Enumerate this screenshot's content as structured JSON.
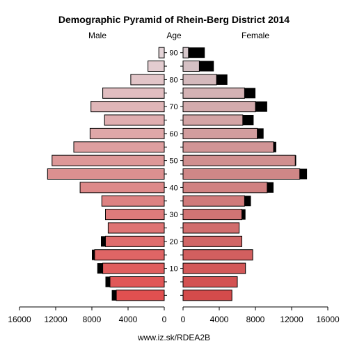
{
  "chart_data": {
    "type": "bar",
    "title": "Demographic Pyramid of Rhein-Berg District 2014",
    "left_label": "Male",
    "center_label": "Age",
    "right_label": "Female",
    "footer": "www.iz.sk/RDEA2B",
    "xlim": [
      0,
      16000
    ],
    "x_ticks": [
      "16000",
      "12000",
      "8000",
      "4000",
      "0"
    ],
    "x_ticks_right": [
      "0",
      "4000",
      "8000",
      "12000",
      "16000"
    ],
    "age_ticks": [
      "10",
      "20",
      "30",
      "40",
      "50",
      "60",
      "70",
      "80",
      "90"
    ],
    "age_groups": [
      "0-4",
      "5-9",
      "10-14",
      "15-19",
      "20-24",
      "25-29",
      "30-34",
      "35-39",
      "40-44",
      "45-49",
      "50-54",
      "55-59",
      "60-64",
      "65-69",
      "70-74",
      "75-79",
      "80-84",
      "85-89",
      "90+"
    ],
    "male": [
      5300,
      6000,
      6800,
      7700,
      6500,
      6200,
      6500,
      6900,
      9300,
      12900,
      12400,
      10000,
      8200,
      6600,
      8100,
      6800,
      3700,
      1800,
      600
    ],
    "male_surplus": [
      500,
      500,
      600,
      300,
      500,
      0,
      0,
      0,
      0,
      0,
      0,
      0,
      0,
      0,
      0,
      0,
      0,
      0,
      0
    ],
    "female": [
      5400,
      6000,
      6900,
      7700,
      6500,
      6200,
      6500,
      6800,
      9300,
      12900,
      12400,
      10000,
      8200,
      6600,
      8000,
      6800,
      3700,
      1800,
      600
    ],
    "female_surplus": [
      0,
      0,
      0,
      0,
      0,
      0,
      400,
      700,
      700,
      800,
      100,
      300,
      700,
      1200,
      1300,
      1200,
      1200,
      1600,
      1800
    ],
    "colors": {
      "young": "#e15050",
      "middle": "#dc9090",
      "old": "#e4d4d8",
      "surplus": "#000000",
      "outline": "#000000"
    }
  }
}
